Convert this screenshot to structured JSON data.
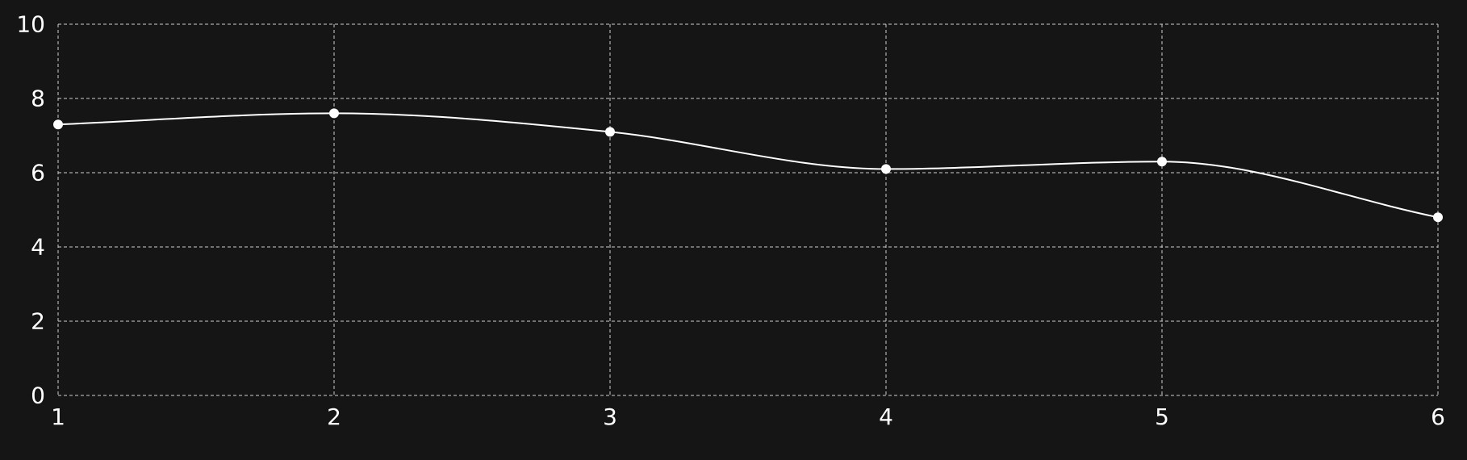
{
  "chart_data": {
    "type": "line",
    "title": "",
    "xlabel": "",
    "ylabel": "",
    "x": [
      1,
      2,
      3,
      4,
      5,
      6
    ],
    "xlim": [
      1,
      6
    ],
    "ylim": [
      0,
      10
    ],
    "yticks": [
      0,
      2,
      4,
      6,
      8,
      10
    ],
    "grid": true,
    "smooth": true,
    "series": [
      {
        "values": [
          7.3,
          7.6,
          7.1,
          6.1,
          6.3,
          4.8
        ]
      }
    ],
    "colors": {
      "background": "#151515",
      "line": "#ffffff",
      "grid": "#d0d0d0",
      "text": "#ffffff"
    }
  }
}
